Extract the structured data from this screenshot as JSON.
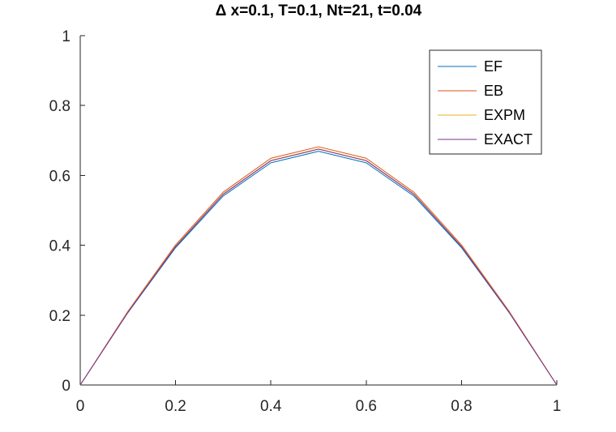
{
  "chart_data": {
    "type": "line",
    "title": "Δ x=0.1, T=0.1, Nt=21, t=0.04",
    "xlabel": "",
    "ylabel": "",
    "xlim": [
      0,
      1
    ],
    "ylim": [
      0,
      1
    ],
    "x_ticks": [
      "0",
      "0.2",
      "0.4",
      "0.6",
      "0.8",
      "1"
    ],
    "y_ticks": [
      "0",
      "0.2",
      "0.4",
      "0.6",
      "0.8",
      "1"
    ],
    "grid": false,
    "legend_position": "top-right",
    "x": [
      0,
      0.1,
      0.2,
      0.3,
      0.4,
      0.5,
      0.6,
      0.7,
      0.8,
      0.9,
      1.0
    ],
    "series": [
      {
        "name": "EF",
        "color": "#0072BD",
        "values": [
          0,
          0.207,
          0.393,
          0.541,
          0.636,
          0.669,
          0.636,
          0.541,
          0.393,
          0.207,
          0
        ]
      },
      {
        "name": "EB",
        "color": "#D95319",
        "values": [
          0,
          0.211,
          0.401,
          0.552,
          0.649,
          0.682,
          0.649,
          0.552,
          0.401,
          0.211,
          0
        ]
      },
      {
        "name": "EXPM",
        "color": "#EDB120",
        "values": [
          0,
          0.209,
          0.397,
          0.547,
          0.643,
          0.676,
          0.643,
          0.547,
          0.397,
          0.209,
          0
        ]
      },
      {
        "name": "EXACT",
        "color": "#7E2F8E",
        "values": [
          0,
          0.208,
          0.396,
          0.546,
          0.642,
          0.675,
          0.642,
          0.546,
          0.396,
          0.208,
          0
        ]
      }
    ]
  }
}
